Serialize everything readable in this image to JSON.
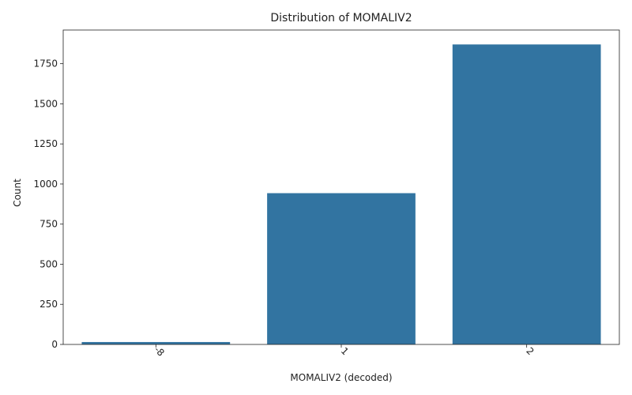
{
  "chart_data": {
    "type": "bar",
    "title": "Distribution of MOMALIV2",
    "xlabel": "MOMALIV2 (decoded)",
    "ylabel": "Count",
    "categories": [
      "-8",
      "1",
      "2"
    ],
    "values": [
      15,
      943,
      1870
    ],
    "ylim": [
      0,
      1960
    ],
    "yticks": [
      0,
      250,
      500,
      750,
      1000,
      1250,
      1500,
      1750
    ],
    "x_tick_rotation": 45,
    "grid": false,
    "legend": "none",
    "colors": {
      "bar": "#3274a1",
      "axis": "#222222",
      "background": "#ffffff"
    }
  }
}
